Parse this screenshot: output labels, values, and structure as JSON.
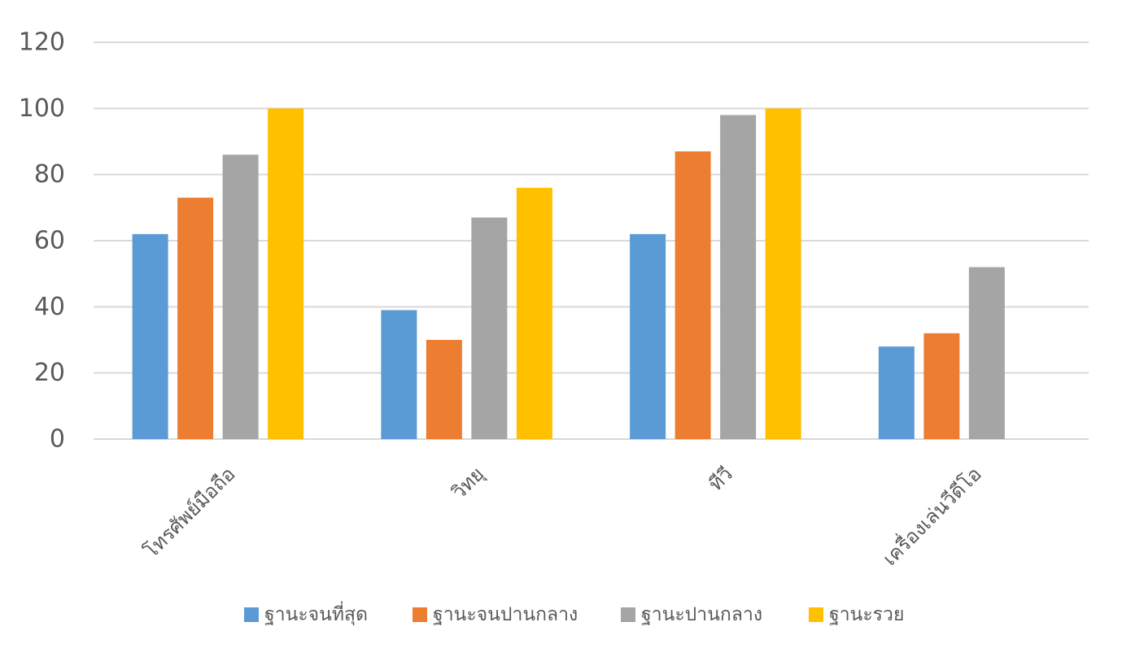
{
  "chart_data": {
    "type": "bar",
    "categories": [
      "โทรศัพย์มือถือ",
      "วิทยุ",
      "ทีวี",
      "เครื่องเล่นวีดีโอ"
    ],
    "series": [
      {
        "name": "ฐานะจนที่สุด",
        "color": "#5B9BD5",
        "values": [
          62,
          39,
          62,
          28
        ]
      },
      {
        "name": "ฐานะจนปานกลาง",
        "color": "#ED7D31",
        "values": [
          73,
          30,
          87,
          32
        ]
      },
      {
        "name": "ฐานะปานกลาง",
        "color": "#A5A5A5",
        "values": [
          86,
          67,
          98,
          52
        ]
      },
      {
        "name": "ฐานะรวย",
        "color": "#FFC000",
        "values": [
          100,
          76,
          100,
          null
        ]
      }
    ],
    "yticks": [
      0,
      20,
      40,
      60,
      80,
      100,
      120
    ],
    "ylim": [
      0,
      120
    ],
    "grid": true,
    "legend_position": "bottom",
    "title": "",
    "xlabel": "",
    "ylabel": ""
  }
}
